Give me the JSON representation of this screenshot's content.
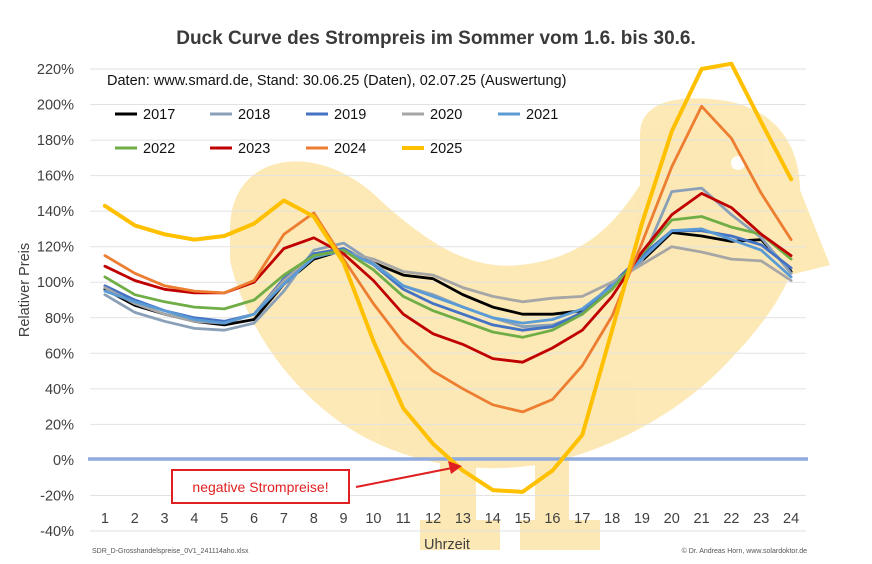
{
  "chart_data": {
    "type": "line",
    "title": "Duck Curve des Strompreis im Sommer vom 1.6. bis 30.6.",
    "subtitle": "Daten: www.smard.de, Stand: 30.06.25 (Daten), 02.07.25 (Auswertung)",
    "xlabel": "Uhrzeit",
    "ylabel": "Relativer Preis",
    "ylim": [
      -40,
      220
    ],
    "yticks": [
      -40,
      -20,
      0,
      20,
      40,
      60,
      80,
      100,
      120,
      140,
      160,
      180,
      200,
      220
    ],
    "ytick_suffix": "%",
    "categories": [
      "1",
      "2",
      "3",
      "4",
      "5",
      "6",
      "7",
      "8",
      "9",
      "10",
      "11",
      "12",
      "13",
      "14",
      "15",
      "16",
      "17",
      "18",
      "19",
      "20",
      "21",
      "22",
      "23",
      "24"
    ],
    "grid": "horizontal",
    "legend_position": "top-left",
    "annotation": "negative Strompreise!",
    "footer_left": "SDR_D-Grosshandelspreise_0V1_241114aho.xlsx",
    "footer_right": "© Dr. Andreas  Horn, www.solardoktor.de",
    "series": [
      {
        "name": "2017",
        "color": "#000000",
        "values": [
          96,
          87,
          82,
          78,
          76,
          79,
          99,
          113,
          118,
          111,
          104,
          102,
          93,
          86,
          82,
          82,
          84,
          97,
          112,
          128,
          126,
          123,
          124,
          106
        ]
      },
      {
        "name": "2018",
        "color": "#8aa0b8",
        "values": [
          93,
          83,
          78,
          74,
          73,
          77,
          95,
          118,
          122,
          111,
          98,
          93,
          86,
          80,
          75,
          76,
          82,
          97,
          112,
          151,
          153,
          138,
          125,
          105
        ]
      },
      {
        "name": "2019",
        "color": "#4472c4",
        "values": [
          98,
          90,
          84,
          80,
          78,
          82,
          102,
          116,
          119,
          110,
          96,
          88,
          82,
          76,
          73,
          75,
          83,
          99,
          115,
          129,
          129,
          126,
          121,
          108
        ]
      },
      {
        "name": "2020",
        "color": "#a6a6a6",
        "values": [
          97,
          88,
          82,
          78,
          77,
          82,
          101,
          115,
          117,
          113,
          106,
          104,
          97,
          92,
          89,
          91,
          92,
          100,
          110,
          120,
          117,
          113,
          112,
          101
        ]
      },
      {
        "name": "2021",
        "color": "#5b9bd5",
        "values": [
          95,
          89,
          84,
          79,
          77,
          82,
          99,
          114,
          118,
          110,
          98,
          92,
          86,
          80,
          77,
          79,
          85,
          98,
          113,
          129,
          130,
          124,
          118,
          103
        ]
      },
      {
        "name": "2022",
        "color": "#70ad47",
        "values": [
          103,
          93,
          89,
          86,
          85,
          90,
          104,
          115,
          118,
          107,
          92,
          84,
          78,
          72,
          69,
          73,
          82,
          96,
          116,
          135,
          137,
          131,
          127,
          113
        ]
      },
      {
        "name": "2023",
        "color": "#c00000",
        "values": [
          109,
          101,
          96,
          94,
          94,
          100,
          119,
          125,
          116,
          101,
          82,
          71,
          65,
          57,
          55,
          63,
          73,
          92,
          117,
          138,
          150,
          142,
          127,
          115
        ]
      },
      {
        "name": "2024",
        "color": "#ed7d31",
        "values": [
          115,
          105,
          98,
          95,
          94,
          101,
          127,
          139,
          113,
          88,
          66,
          50,
          40,
          31,
          27,
          34,
          53,
          81,
          122,
          165,
          199,
          181,
          150,
          124
        ]
      },
      {
        "name": "2025",
        "color": "#ffc000",
        "values": [
          143,
          132,
          127,
          124,
          126,
          133,
          146,
          137,
          111,
          67,
          29,
          9,
          -6,
          -17,
          -18,
          -6,
          14,
          73,
          133,
          185,
          220,
          223,
          190,
          158
        ]
      }
    ]
  }
}
